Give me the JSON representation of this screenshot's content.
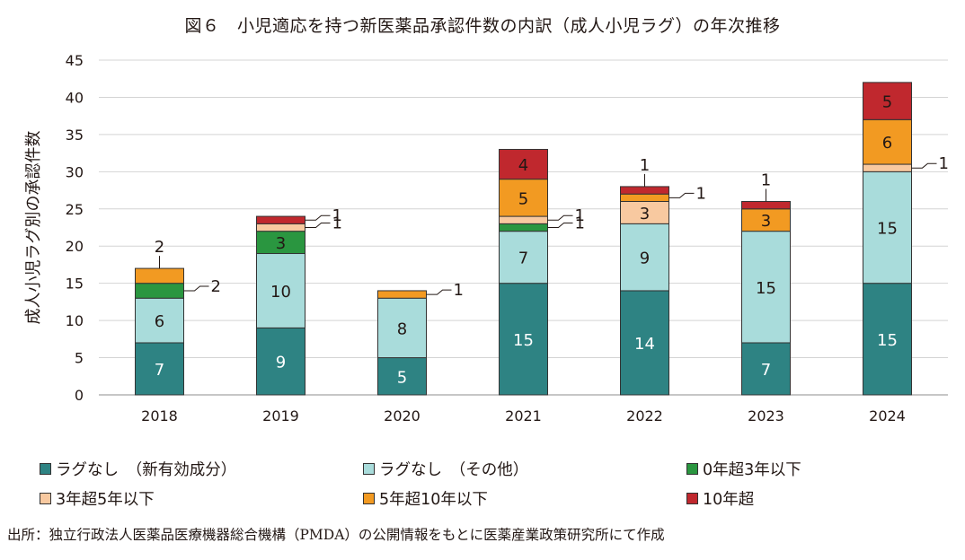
{
  "chart_data": {
    "type": "bar",
    "stacked": true,
    "title": "図６　小児適応を持つ新医薬品承認件数の内訳（成人小児ラグ）の年次推移",
    "ylabel": "成人小児ラグ別の承認件数",
    "xlabel": "",
    "ylim": [
      0,
      45
    ],
    "yticks": [
      0,
      5,
      10,
      15,
      20,
      25,
      30,
      35,
      40,
      45
    ],
    "grid": true,
    "legend_position": "bottom",
    "categories": [
      "2018",
      "2019",
      "2020",
      "2021",
      "2022",
      "2023",
      "2024"
    ],
    "series": [
      {
        "name": "ラグなし　（新有効成分）",
        "color": "#2e8383",
        "values": [
          7,
          9,
          5,
          15,
          14,
          7,
          15
        ]
      },
      {
        "name": "ラグなし　（その他）",
        "color": "#a9dcdb",
        "values": [
          6,
          10,
          8,
          7,
          9,
          15,
          15
        ]
      },
      {
        "name": "0年超3年以下",
        "color": "#2a9640",
        "values": [
          2,
          3,
          0,
          1,
          0,
          0,
          0
        ]
      },
      {
        "name": "3年超5年以下",
        "color": "#f8c9a0",
        "values": [
          0,
          1,
          0,
          1,
          3,
          0,
          1
        ]
      },
      {
        "name": "5年超10年以下",
        "color": "#f29a22",
        "values": [
          2,
          0,
          1,
          5,
          1,
          3,
          6
        ]
      },
      {
        "name": "10年超",
        "color": "#c0282e",
        "values": [
          0,
          1,
          0,
          4,
          1,
          1,
          5
        ]
      }
    ]
  },
  "source": "出所：独立行政法人医薬品医療機器総合機構（PMDA）の公開情報をもとに医薬産業政策研究所にて作成"
}
